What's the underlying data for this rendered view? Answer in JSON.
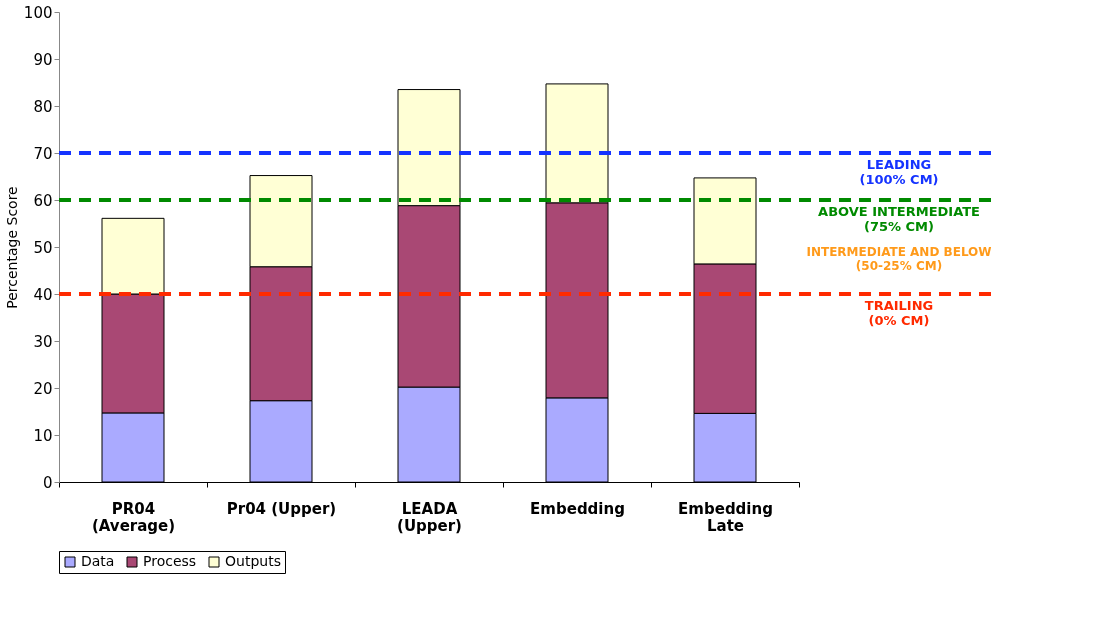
{
  "chart_data": {
    "type": "bar",
    "stacked": true,
    "ylabel": "Percentage Score",
    "categories": [
      "PR04 (Average)",
      "Pr04 (Upper)",
      "LEADA (Upper)",
      "Embedding",
      "Embedding Late"
    ],
    "series": [
      {
        "name": "Data",
        "color": "#aaaaff",
        "values": [
          14.7,
          17.3,
          20.2,
          17.9,
          14.6
        ]
      },
      {
        "name": "Process",
        "color": "#a94874",
        "values": [
          25.3,
          28.5,
          38.6,
          41.5,
          31.8
        ]
      },
      {
        "name": "Outputs",
        "color": "#ffffd5",
        "values": [
          16.1,
          19.4,
          24.7,
          25.3,
          18.3
        ]
      }
    ],
    "ylim": [
      0,
      100
    ],
    "yticks": [
      0,
      10,
      20,
      30,
      40,
      50,
      60,
      70,
      80,
      90,
      100
    ],
    "grid": false,
    "legend": "bottom",
    "ref_lines": [
      {
        "axis": "y",
        "value": 70,
        "label": "LEADING\n(100% CM)",
        "color": "#1533ff",
        "line_style": "dashed"
      },
      {
        "axis": "y",
        "value": 60,
        "label": "ABOVE INTERMEDIATE\n(75% CM)",
        "color": "#008a00",
        "line_style": "dashed"
      },
      {
        "axis": "y",
        "value": 40,
        "label": "TRAILING\n(0% CM)",
        "color": "#ff2a00",
        "line_style": "dashed"
      }
    ],
    "annotations": [
      "INTERMEDIATE AND BELOW\n(50-25% CM)"
    ]
  }
}
